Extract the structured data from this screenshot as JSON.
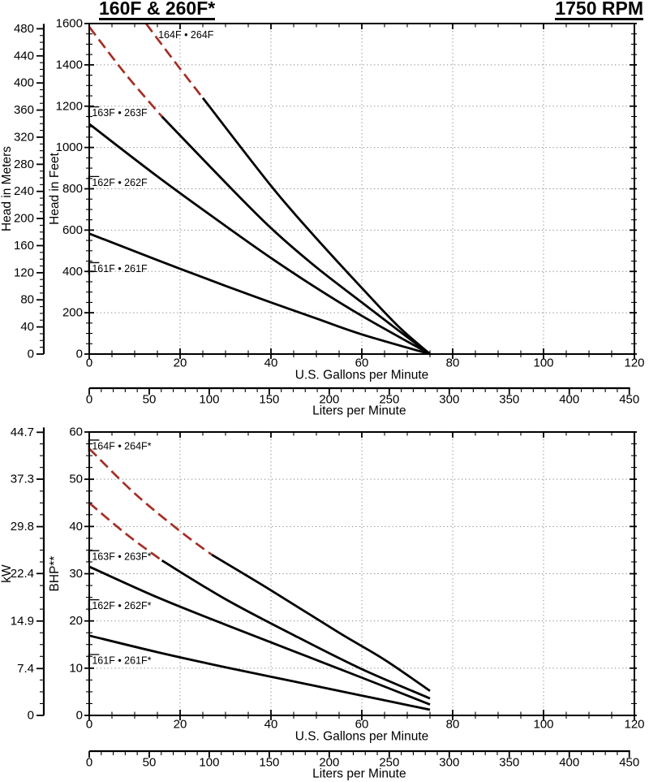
{
  "colors": {
    "curve_solid": "#000000",
    "curve_dashed": "#A42F26",
    "grid": "#8a8a8a",
    "text": "#000000"
  },
  "chart_data": [
    {
      "id": "head-capacity",
      "type": "line",
      "title_left": "160F & 260F*",
      "title_right": "1750 RPM",
      "x_axis": {
        "label": "U.S. Gallons per Minute",
        "min": 0,
        "max": 120,
        "major_ticks": [
          0,
          20,
          40,
          60,
          80,
          100,
          120
        ],
        "minor_step": 5
      },
      "x2_axis": {
        "label": "Liters per Minute",
        "min": 0,
        "max": 450,
        "major_ticks": [
          0,
          50,
          100,
          150,
          200,
          250,
          300,
          350,
          400,
          450
        ],
        "minor_step": 10,
        "liters_per_gallon": 3.78541
      },
      "y_axis": {
        "label": "Head in Feet",
        "min": 0,
        "max": 1600,
        "major_ticks": [
          0,
          200,
          400,
          600,
          800,
          1000,
          1200,
          1400,
          1600
        ],
        "minor_step": 50
      },
      "y2_axis": {
        "label": "Head in Meters",
        "tick_labels": [
          "0",
          "40",
          "80",
          "120",
          "160",
          "200",
          "240",
          "280",
          "320",
          "360",
          "400",
          "440",
          "480"
        ],
        "tick_values": [
          0,
          40,
          80,
          120,
          160,
          200,
          240,
          280,
          320,
          360,
          400,
          440,
          480
        ],
        "minor_step": 10,
        "max_value": 480,
        "primary_per_unit": 3.28084
      },
      "grid": {
        "x_lines": [
          20,
          40,
          60,
          80,
          100
        ],
        "y_lines": [
          200,
          400,
          600,
          800,
          1000,
          1200,
          1400
        ]
      },
      "series": [
        {
          "name": "161F • 261F",
          "label": {
            "text": "161F • 261F",
            "x": 0.6,
            "y": 413,
            "leader": true
          },
          "segments": [
            {
              "style": "solid",
              "points": [
                [
                  0,
                  583
                ],
                [
                  15,
                  455
                ],
                [
                  30,
                  330
                ],
                [
                  40,
                  250
                ],
                [
                  50,
                  172
                ],
                [
                  60,
                  95
                ],
                [
                  75,
                  0
                ]
              ]
            }
          ]
        },
        {
          "name": "162F • 262F",
          "label": {
            "text": "162F • 262F",
            "x": 0.6,
            "y": 830,
            "leader": true
          },
          "segments": [
            {
              "style": "solid",
              "points": [
                [
                  0,
                  1114
                ],
                [
                  15,
                  860
                ],
                [
                  30,
                  620
                ],
                [
                  40,
                  465
                ],
                [
                  50,
                  320
                ],
                [
                  60,
                  185
                ],
                [
                  75,
                  0
                ]
              ]
            }
          ]
        },
        {
          "name": "163F • 263F",
          "label": {
            "text": "163F • 263F",
            "x": 0.6,
            "y": 1167,
            "leader": true
          },
          "segments": [
            {
              "style": "dashed",
              "points": [
                [
                  0,
                  1584
                ],
                [
                  8,
                  1355
                ],
                [
                  16,
                  1150
                ]
              ]
            },
            {
              "style": "solid",
              "points": [
                [
                  16,
                  1150
                ],
                [
                  30,
                  830
                ],
                [
                  40,
                  610
                ],
                [
                  50,
                  420
                ],
                [
                  60,
                  250
                ],
                [
                  68,
                  115
                ],
                [
                  75,
                  0
                ]
              ]
            }
          ]
        },
        {
          "name": "164F • 264F",
          "label": {
            "text": "164F • 264F",
            "x": 15.2,
            "y": 1545,
            "leader": false
          },
          "segments": [
            {
              "style": "dashed",
              "points": [
                [
                  12.5,
                  1600
                ],
                [
                  19,
                  1410
                ],
                [
                  25,
                  1240
                ]
              ]
            },
            {
              "style": "solid",
              "points": [
                [
                  25,
                  1240
                ],
                [
                  40,
                  815
                ],
                [
                  50,
                  560
                ],
                [
                  60,
                  320
                ],
                [
                  68,
                  135
                ],
                [
                  75,
                  0
                ]
              ]
            }
          ]
        }
      ]
    },
    {
      "id": "bhp-capacity",
      "type": "line",
      "x_axis": {
        "label": "U.S. Gallons per Minute",
        "min": 0,
        "max": 120,
        "major_ticks": [
          0,
          20,
          40,
          60,
          80,
          100,
          120
        ],
        "minor_step": 5
      },
      "x2_axis": {
        "label": "Liters per Minute",
        "min": 0,
        "max": 450,
        "major_ticks": [
          0,
          50,
          100,
          150,
          200,
          250,
          300,
          350,
          400,
          450
        ],
        "minor_step": 10,
        "liters_per_gallon": 3.78541
      },
      "y_axis": {
        "label": "BHP**",
        "min": 0,
        "max": 60,
        "major_ticks": [
          0,
          10,
          20,
          30,
          40,
          50,
          60
        ],
        "minor_step": 2.5
      },
      "y2_axis": {
        "label": "kW",
        "tick_labels": [
          "0",
          "7.4",
          "14.9",
          "22.4",
          "29.8",
          "37.3",
          "44.7"
        ],
        "tick_values": [
          0,
          7.4,
          14.9,
          22.4,
          29.8,
          37.3,
          44.7
        ],
        "minor_step": 1.864,
        "max_value": 44.7,
        "primary_per_unit": 1.341
      },
      "grid": {
        "x_lines": [
          20,
          40,
          60,
          80,
          100
        ],
        "y_lines": [
          10,
          20,
          30,
          40,
          50
        ]
      },
      "series": [
        {
          "name": "161F • 261F*",
          "label": {
            "text": "161F • 261F*",
            "x": 0.6,
            "y": 11.6,
            "leader": true
          },
          "segments": [
            {
              "style": "solid",
              "points": [
                [
                  0,
                  16.9
                ],
                [
                  15,
                  13.4
                ],
                [
                  30,
                  10.2
                ],
                [
                  45,
                  7.2
                ],
                [
                  60,
                  4.2
                ],
                [
                  75,
                  1.2
                ]
              ]
            }
          ]
        },
        {
          "name": "162F • 262F*",
          "label": {
            "text": "162F • 262F*",
            "x": 0.6,
            "y": 23.2,
            "leader": true
          },
          "segments": [
            {
              "style": "solid",
              "points": [
                [
                  0,
                  31.5
                ],
                [
                  15,
                  25
                ],
                [
                  30,
                  19.2
                ],
                [
                  45,
                  13.6
                ],
                [
                  60,
                  8.0
                ],
                [
                  75,
                  2.3
                ]
              ]
            }
          ]
        },
        {
          "name": "163F • 263F*",
          "label": {
            "text": "163F • 263F*",
            "x": 0.6,
            "y": 33.6,
            "leader": true
          },
          "segments": [
            {
              "style": "dashed",
              "points": [
                [
                  0,
                  45
                ],
                [
                  8,
                  38.5
                ],
                [
                  16,
                  32.8
                ]
              ]
            },
            {
              "style": "solid",
              "points": [
                [
                  16,
                  32.8
                ],
                [
                  30,
                  24.6
                ],
                [
                  45,
                  17
                ],
                [
                  60,
                  9.8
                ],
                [
                  75,
                  3.6
                ]
              ]
            }
          ]
        },
        {
          "name": "164F • 264F*",
          "label": {
            "text": "164F • 264F*",
            "x": 0.6,
            "y": 57.0,
            "leader": true
          },
          "segments": [
            {
              "style": "dashed",
              "points": [
                [
                  0,
                  56.5
                ],
                [
                  10,
                  47
                ],
                [
                  20,
                  39
                ],
                [
                  27,
                  34
                ]
              ]
            },
            {
              "style": "solid",
              "points": [
                [
                  27,
                  34
                ],
                [
                  40,
                  26.5
                ],
                [
                  55,
                  17.5
                ],
                [
                  65,
                  11.8
                ],
                [
                  75,
                  5.2
                ]
              ]
            }
          ]
        }
      ]
    }
  ]
}
